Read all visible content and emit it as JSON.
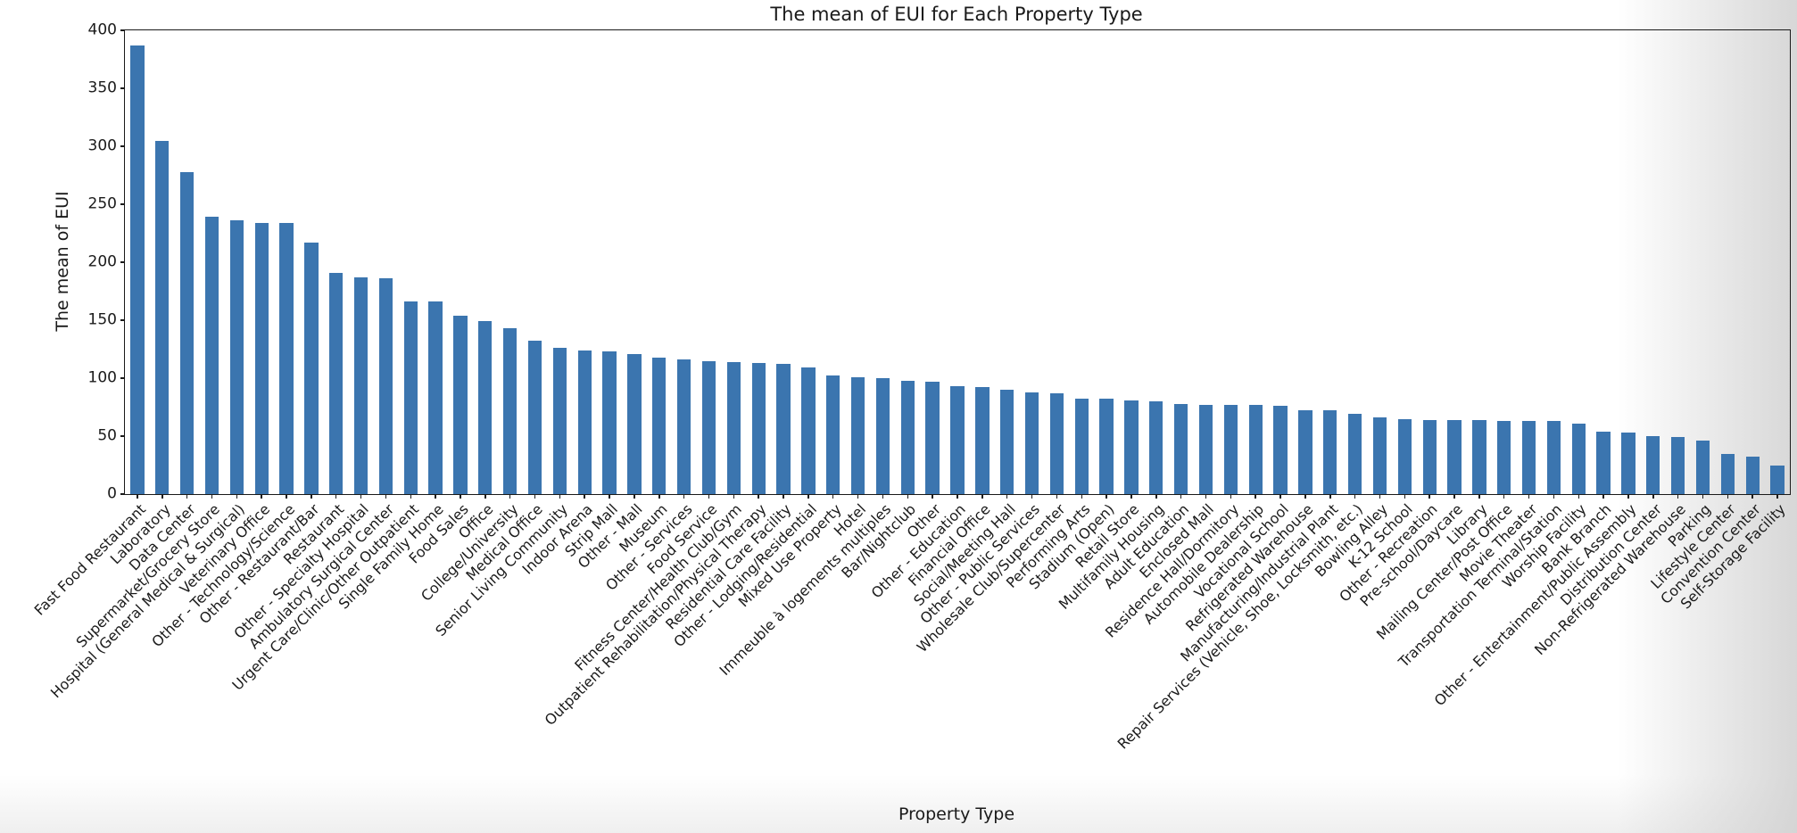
{
  "colors": {
    "bar": "#3b75af",
    "axis": "#1a1a1a",
    "text": "#1a1a1a"
  },
  "chart_data": {
    "type": "bar",
    "title": "The mean of EUI for Each Property Type",
    "xlabel": "Property Type",
    "ylabel": "The mean of EUI",
    "ylim": [
      0,
      400
    ],
    "yticks": [
      0,
      50,
      100,
      150,
      200,
      250,
      300,
      350,
      400
    ],
    "grid": false,
    "legend_position": "none",
    "bar_color": "#3b75af",
    "categories": [
      "Fast Food Restaurant",
      "Laboratory",
      "Data Center",
      "Supermarket/Grocery Store",
      "Hospital (General Medical & Surgical)",
      "Veterinary Office",
      "Other - Technology/Science",
      "Other - Restaurant/Bar",
      "Restaurant",
      "Other - Specialty Hospital",
      "Ambulatory Surgical Center",
      "Urgent Care/Clinic/Other Outpatient",
      "Single Family Home",
      "Food Sales",
      "Office",
      "College/University",
      "Medical Office",
      "Senior Living Community",
      "Indoor Arena",
      "Strip Mall",
      "Other - Mall",
      "Museum",
      "Other - Services",
      "Food Service",
      "Fitness Center/Health Club/Gym",
      "Outpatient Rehabilitation/Physical Therapy",
      "Residential Care Facility",
      "Other - Lodging/Residential",
      "Mixed Use Property",
      "Hotel",
      "Immeuble à logements multiples",
      "Bar/Nightclub",
      "Other",
      "Other - Education",
      "Financial Office",
      "Social/Meeting Hall",
      "Other - Public Services",
      "Wholesale Club/Supercenter",
      "Performing Arts",
      "Stadium (Open)",
      "Retail Store",
      "Multifamily Housing",
      "Adult Education",
      "Enclosed Mall",
      "Residence Hall/Dormitory",
      "Automobile Dealership",
      "Vocational School",
      "Refrigerated Warehouse",
      "Manufacturing/Industrial Plant",
      "Repair Services (Vehicle, Shoe, Locksmith, etc.)",
      "Bowling Alley",
      "K-12 School",
      "Other - Recreation",
      "Pre-school/Daycare",
      "Library",
      "Mailing Center/Post Office",
      "Movie Theater",
      "Transportation Terminal/Station",
      "Worship Facility",
      "Bank Branch",
      "Other - Entertainment/Public Assembly",
      "Distribution Center",
      "Non-Refrigerated Warehouse",
      "Parking",
      "Lifestyle Center",
      "Convention Center",
      "Self-Storage Facility"
    ],
    "values": [
      387,
      305,
      278,
      239,
      236,
      234,
      234,
      217,
      191,
      187,
      186,
      166,
      166,
      154,
      149,
      143,
      132,
      126,
      124,
      123,
      121,
      118,
      116,
      115,
      114,
      113,
      112,
      109,
      102,
      101,
      100,
      98,
      97,
      93,
      92,
      90,
      88,
      87,
      82,
      82,
      81,
      80,
      78,
      77,
      77,
      77,
      76,
      72,
      72,
      69,
      66,
      65,
      64,
      64,
      64,
      63,
      63,
      63,
      61,
      54,
      53,
      50,
      49,
      46,
      35,
      32,
      25
    ]
  }
}
